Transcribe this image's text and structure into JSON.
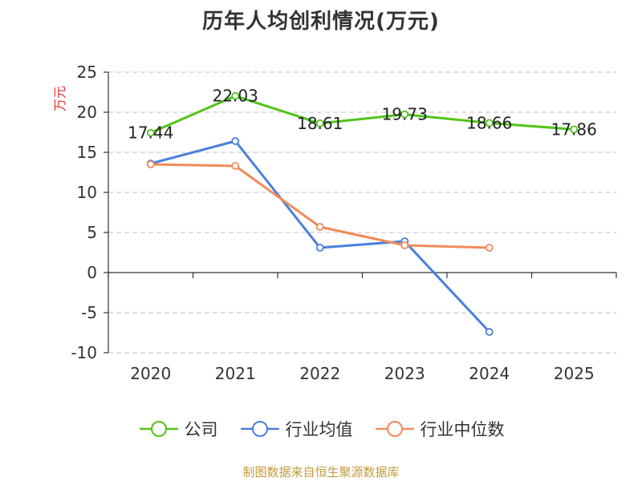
{
  "chart_data": {
    "type": "line",
    "title": "历年人均创利情况(万元)",
    "ylabel": "万元",
    "xlabel": "",
    "categories": [
      "2020",
      "2021",
      "2022",
      "2023",
      "2024",
      "2025"
    ],
    "ylim": [
      -10,
      25
    ],
    "yticks": [
      -10,
      -5,
      0,
      5,
      10,
      15,
      20,
      25
    ],
    "grid": true,
    "legend_position": "bottom",
    "series": [
      {
        "name": "公司",
        "color": "#52c41a",
        "values": [
          17.44,
          22.03,
          18.61,
          19.73,
          18.66,
          17.86
        ],
        "labels": [
          "17.44",
          "22.03",
          "18.61",
          "19.73",
          "18.66",
          "17.86"
        ],
        "show_labels": true
      },
      {
        "name": "行业均值",
        "color": "#4a7fdd",
        "values": [
          13.6,
          16.4,
          3.1,
          3.9,
          -7.4,
          null
        ],
        "show_labels": false
      },
      {
        "name": "行业中位数",
        "color": "#f28b5a",
        "values": [
          13.5,
          13.3,
          5.7,
          3.4,
          3.1,
          null
        ],
        "show_labels": false
      }
    ]
  },
  "footer": {
    "source": "制图数据来自恒生聚源数据库"
  }
}
